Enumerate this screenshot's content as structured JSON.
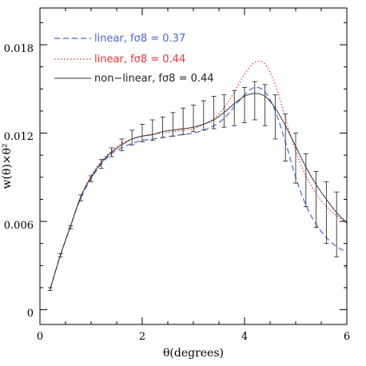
{
  "chart_data": {
    "type": "line",
    "xlabel": "θ(degrees)",
    "ylabel": "w(θ)×θ²",
    "xlim": [
      0,
      6
    ],
    "ylim": [
      -0.001,
      0.0205
    ],
    "xticks": [
      0,
      2,
      4,
      6
    ],
    "xtick_labels": [
      "0",
      "2",
      "4",
      "6"
    ],
    "yticks": [
      0,
      0.006,
      0.012,
      0.018
    ],
    "ytick_labels": [
      "0",
      "0.006",
      "0.012",
      "0.018"
    ],
    "grid": false,
    "legend_position": "top-left",
    "series": [
      {
        "name": "linear, fσ8 = 0.37",
        "style": "dashed",
        "color": "#4466dd",
        "x": [
          0.2,
          0.4,
          0.6,
          0.8,
          1.0,
          1.2,
          1.4,
          1.6,
          1.8,
          2.0,
          2.2,
          2.4,
          2.6,
          2.8,
          3.0,
          3.2,
          3.4,
          3.6,
          3.8,
          4.0,
          4.2,
          4.4,
          4.6,
          4.8,
          5.0,
          5.2,
          5.4,
          5.6,
          5.8,
          6.0
        ],
        "y": [
          0.0014,
          0.0037,
          0.0057,
          0.0076,
          0.0089,
          0.0099,
          0.0106,
          0.011,
          0.0113,
          0.0115,
          0.0116,
          0.0117,
          0.0118,
          0.0119,
          0.012,
          0.0122,
          0.0125,
          0.013,
          0.0138,
          0.0146,
          0.0151,
          0.0148,
          0.0135,
          0.0114,
          0.009,
          0.0071,
          0.0058,
          0.0049,
          0.0043,
          0.0039
        ]
      },
      {
        "name": "linear, fσ8 = 0.44",
        "style": "dotted",
        "color": "#ee3333",
        "x": [
          0.2,
          0.4,
          0.6,
          0.8,
          1.0,
          1.2,
          1.4,
          1.6,
          1.8,
          2.0,
          2.2,
          2.4,
          2.6,
          2.8,
          3.0,
          3.2,
          3.4,
          3.6,
          3.8,
          4.0,
          4.2,
          4.4,
          4.6,
          4.8,
          5.0,
          5.2,
          5.4,
          5.6,
          5.8,
          6.0
        ],
        "y": [
          0.0014,
          0.0037,
          0.0057,
          0.0077,
          0.0091,
          0.0101,
          0.0108,
          0.0113,
          0.0116,
          0.0118,
          0.0119,
          0.012,
          0.0121,
          0.0122,
          0.0123,
          0.0126,
          0.013,
          0.0137,
          0.0148,
          0.016,
          0.0168,
          0.0167,
          0.0153,
          0.013,
          0.0108,
          0.0091,
          0.0079,
          0.007,
          0.0064,
          0.0059
        ]
      },
      {
        "name": "non−linear, fσ8 = 0.44",
        "style": "solid",
        "color": "#333333",
        "x": [
          0.2,
          0.4,
          0.6,
          0.8,
          1.0,
          1.2,
          1.4,
          1.6,
          1.8,
          2.0,
          2.2,
          2.4,
          2.6,
          2.8,
          3.0,
          3.2,
          3.4,
          3.6,
          3.8,
          4.0,
          4.2,
          4.4,
          4.6,
          4.8,
          5.0,
          5.2,
          5.4,
          5.6,
          5.8,
          6.0
        ],
        "y": [
          0.0014,
          0.0037,
          0.0057,
          0.0077,
          0.009,
          0.01,
          0.0107,
          0.0112,
          0.0116,
          0.0118,
          0.0119,
          0.0121,
          0.0122,
          0.0123,
          0.0124,
          0.0126,
          0.0129,
          0.0134,
          0.014,
          0.0145,
          0.0147,
          0.0145,
          0.0137,
          0.0125,
          0.0111,
          0.0097,
          0.0085,
          0.0075,
          0.0066,
          0.0059
        ]
      }
    ],
    "error_bars": {
      "name": "data",
      "color": "#333333",
      "x": [
        0.2,
        0.4,
        0.6,
        0.8,
        1.0,
        1.2,
        1.4,
        1.6,
        1.8,
        2.0,
        2.2,
        2.4,
        2.6,
        2.8,
        3.0,
        3.2,
        3.4,
        3.6,
        3.8,
        4.0,
        4.2,
        4.4,
        4.6,
        4.8,
        5.0,
        5.2,
        5.4,
        5.6,
        5.8,
        6.0
      ],
      "y": [
        0.0014,
        0.0037,
        0.0056,
        0.0076,
        0.0089,
        0.0099,
        0.0107,
        0.0112,
        0.0117,
        0.012,
        0.0122,
        0.0124,
        0.0126,
        0.0128,
        0.013,
        0.0132,
        0.0134,
        0.0135,
        0.0137,
        0.0139,
        0.0142,
        0.0139,
        0.0131,
        0.0117,
        0.0103,
        0.0088,
        0.0075,
        0.0066,
        0.0058,
        0.0052
      ],
      "err": [
        0.0001,
        0.0001,
        0.0001,
        0.0002,
        0.0002,
        0.0003,
        0.0003,
        0.0004,
        0.0005,
        0.0006,
        0.0007,
        0.0007,
        0.0008,
        0.0009,
        0.0009,
        0.001,
        0.0011,
        0.0011,
        0.0012,
        0.0012,
        0.0013,
        0.0014,
        0.0015,
        0.0016,
        0.0017,
        0.0018,
        0.0019,
        0.0021,
        0.0022,
        0.0023
      ]
    }
  }
}
